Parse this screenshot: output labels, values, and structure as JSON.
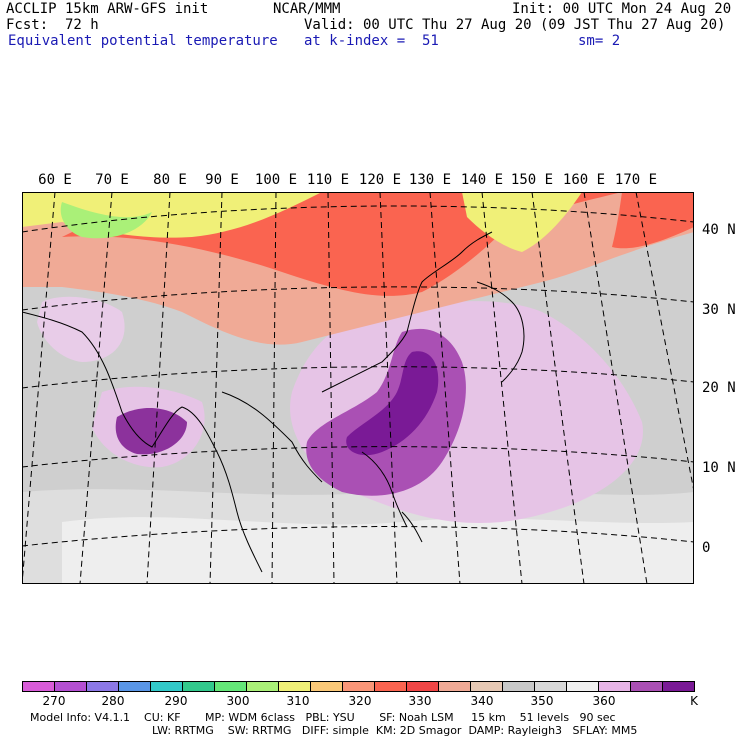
{
  "header": {
    "model": "ACCLIP 15km ARW-GFS init",
    "org": "NCAR/MMM",
    "init": "Init: 00 UTC Mon 24 Aug 20",
    "fcst_label": "Fcst:",
    "fcst_value": "72 h",
    "valid": "Valid: 00 UTC Thu 27 Aug 20 (09 JST Thu 27 Aug 20)",
    "field": "Equivalent potential temperature",
    "level": "at k-index =  51",
    "smooth": "sm= 2"
  },
  "lon_labels": [
    "60 E",
    "70 E",
    "80 E",
    "90 E",
    "100 E",
    "110 E",
    "120 E",
    "130 E",
    "140 E",
    "150 E",
    "160 E",
    "170 E"
  ],
  "lat_labels": [
    "40 N",
    "30 N",
    "20 N",
    "10 N",
    "0"
  ],
  "colorbar": {
    "labels": [
      "270",
      "280",
      "290",
      "300",
      "310",
      "320",
      "330",
      "340",
      "350",
      "360"
    ],
    "unit": "K",
    "colors": [
      "#d85cd8",
      "#b450d2",
      "#8c78e6",
      "#5a96e6",
      "#32c8c8",
      "#32c88c",
      "#64e678",
      "#aaf078",
      "#f0f078",
      "#fac878",
      "#fa9678",
      "#fa6450",
      "#f04646",
      "#f0aa96",
      "#e6c8b4",
      "#c8c8c8",
      "#d8d8d8",
      "#f0f0f0",
      "#e6b4e6",
      "#aa50b4",
      "#7a1a96"
    ]
  },
  "footer": {
    "line1": "Model Info: V4.1.1    CU: KF       MP: WDM 6class   PBL: YSU       SF: Noah LSM     15 km    51 levels   90 sec",
    "line2": "LW: RRTMG    SW: RRTMG   DIFF: simple  KM: 2D Smagor  DAMP: Rayleigh3   SFLAY: MM5"
  }
}
